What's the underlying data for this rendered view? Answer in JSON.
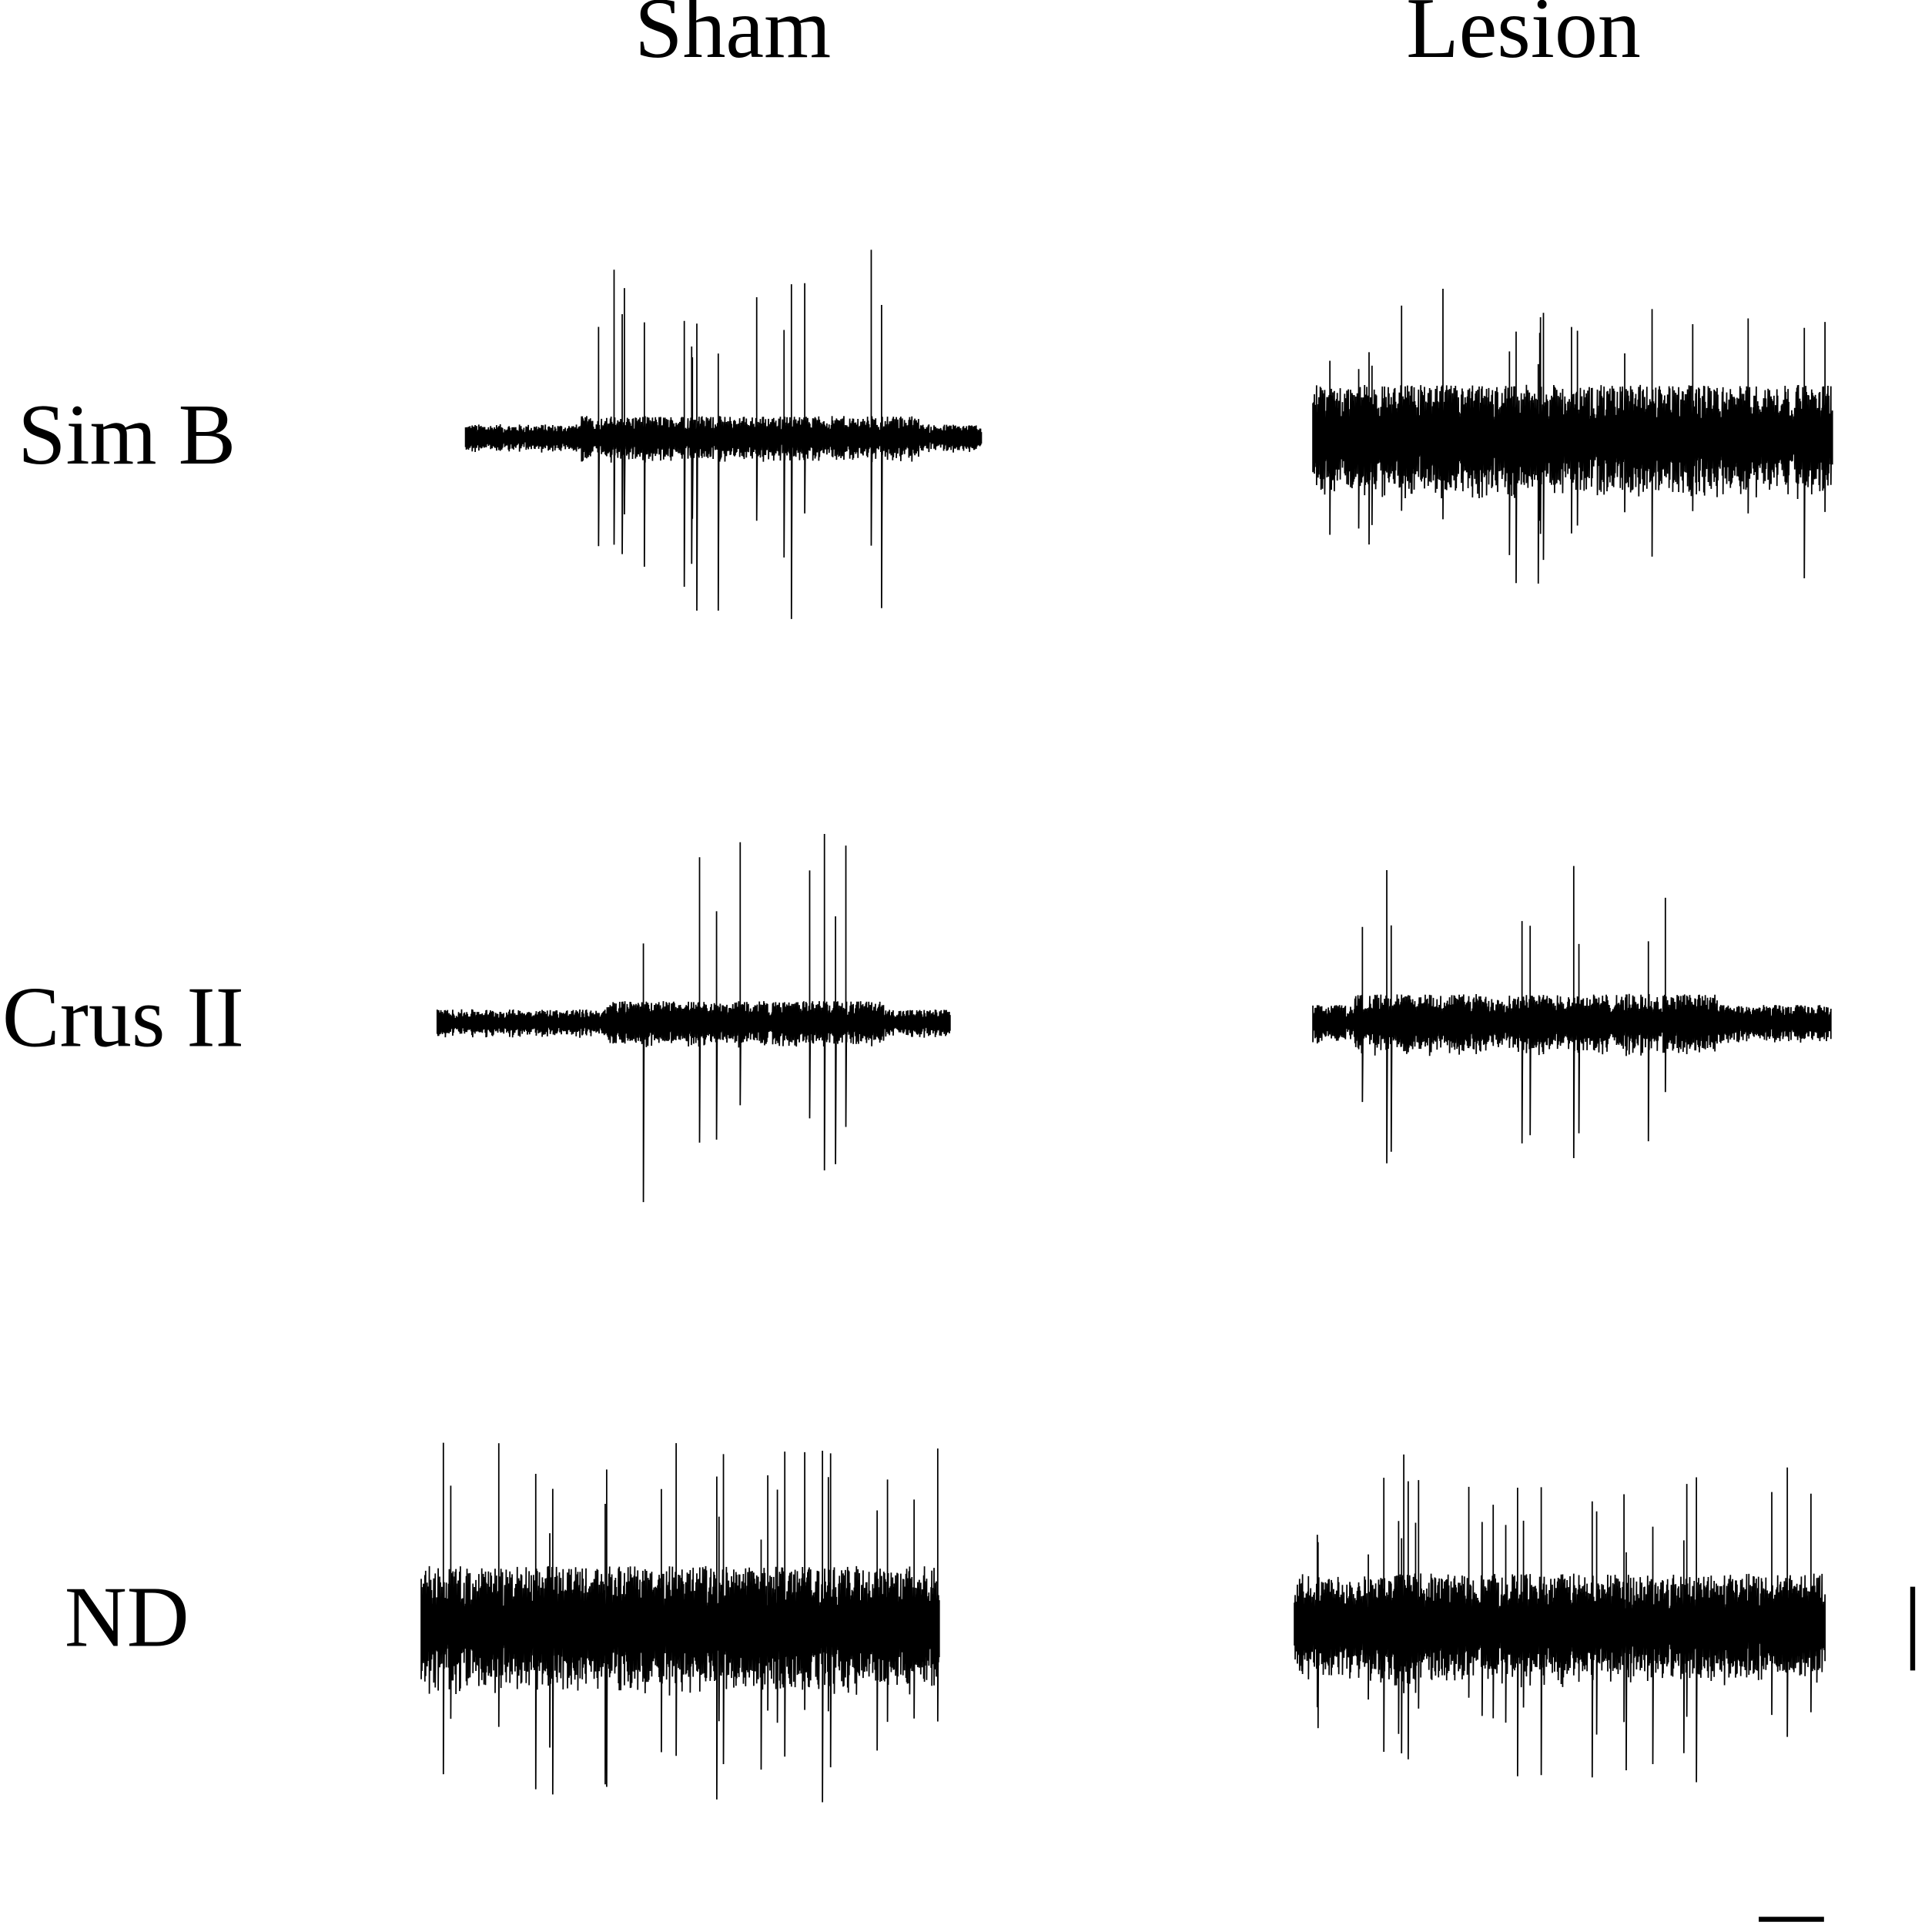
{
  "columns": [
    "Sham",
    "Lesion"
  ],
  "rows": [
    "Sim B",
    "Crus II",
    "ND"
  ]
}
